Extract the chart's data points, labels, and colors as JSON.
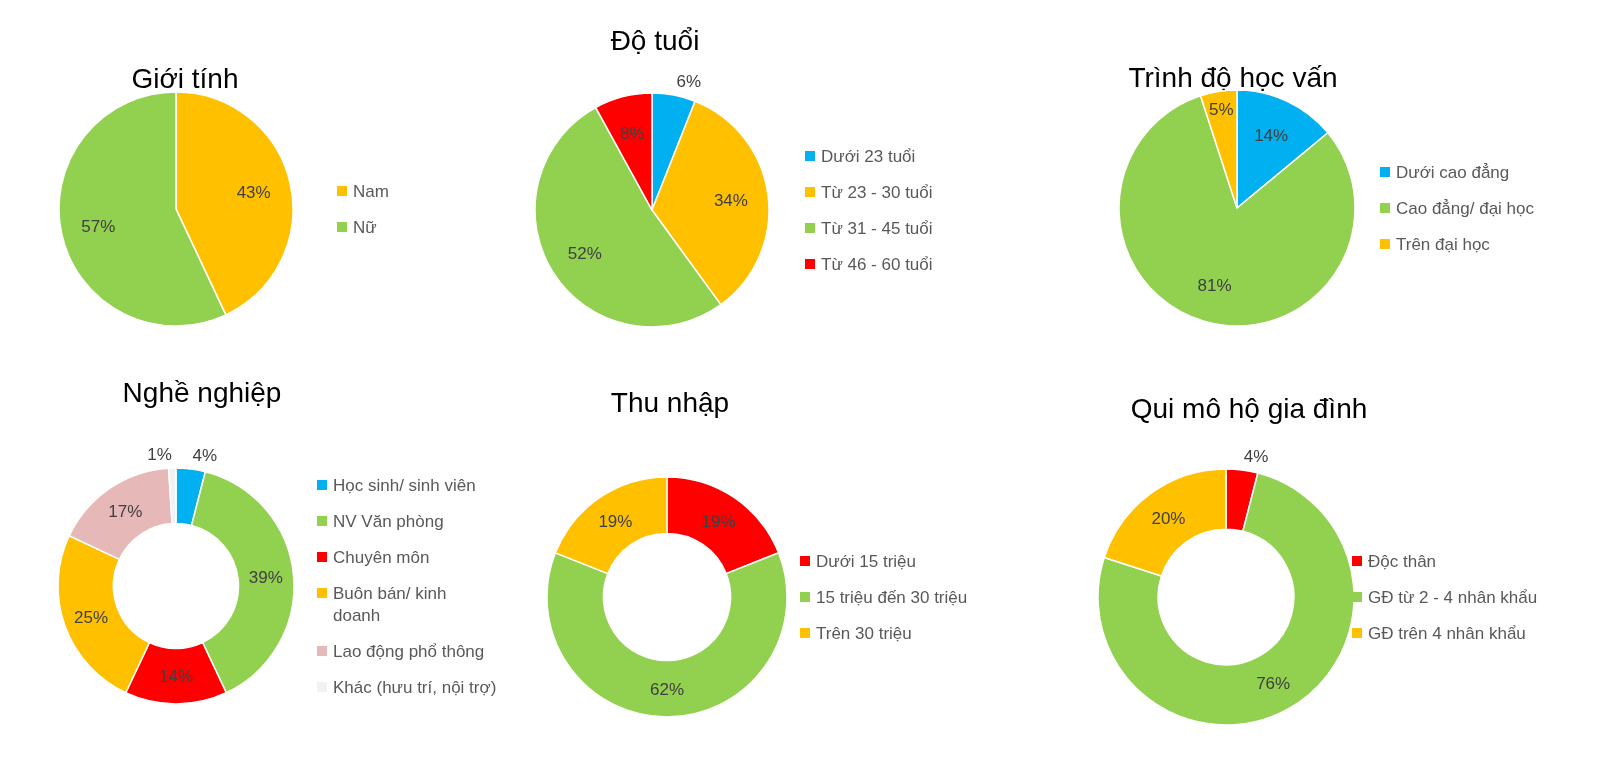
{
  "chart_data": [
    {
      "type": "pie",
      "title": "Giới tính",
      "categories": [
        "Nam",
        "Nữ"
      ],
      "values": [
        43,
        57
      ],
      "value_labels": [
        "43%",
        "57%"
      ],
      "colors": [
        "#ffc000",
        "#92d050"
      ],
      "legend": "right"
    },
    {
      "type": "pie",
      "title": "Độ tuổi",
      "categories": [
        "Dưới 23 tuổi",
        "Từ 23 - 30 tuổi",
        "Từ 31 - 45 tuổi",
        "Từ 46 - 60 tuổi"
      ],
      "values": [
        6,
        34,
        52,
        8
      ],
      "value_labels": [
        "6%",
        "34%",
        "52%",
        "8%"
      ],
      "colors": [
        "#00b0f0",
        "#ffc000",
        "#92d050",
        "#ff0000"
      ],
      "legend": "right"
    },
    {
      "type": "pie",
      "title": "Trình độ học vấn",
      "categories": [
        "Dưới cao đẳng",
        "Cao đẳng/ đại học",
        "Trên đại học"
      ],
      "values": [
        14,
        81,
        5
      ],
      "value_labels": [
        "14%",
        "81%",
        "5%"
      ],
      "colors": [
        "#00b0f0",
        "#92d050",
        "#ffc000"
      ],
      "legend": "right"
    },
    {
      "type": "donut",
      "title": "Nghề nghiệp",
      "categories": [
        "Học sinh/ sinh viên",
        "NV Văn phòng",
        "Chuyên môn",
        "Buôn bán/ kinh doanh",
        "Lao động phổ thông",
        "Khác (hưu trí, nội trợ)"
      ],
      "values": [
        4,
        39,
        14,
        25,
        17,
        1
      ],
      "value_labels": [
        "4%",
        "39%",
        "14%",
        "25%",
        "17%",
        "1%"
      ],
      "colors": [
        "#00b0f0",
        "#92d050",
        "#ff0000",
        "#ffc000",
        "#e6b9b8",
        "#f2f2f2"
      ],
      "legend": "right"
    },
    {
      "type": "donut",
      "title": "Thu nhập",
      "categories": [
        "Dưới 15 triệu",
        "15 triệu đến 30 triệu",
        "Trên 30 triệu"
      ],
      "values": [
        19,
        62,
        19
      ],
      "value_labels": [
        "19%",
        "62%",
        "19%"
      ],
      "colors": [
        "#ff0000",
        "#92d050",
        "#ffc000"
      ],
      "legend": "right"
    },
    {
      "type": "donut",
      "title": "Qui mô hộ gia đình",
      "categories": [
        "Độc thân",
        "GĐ từ 2 - 4 nhân khẩu",
        "GĐ trên 4 nhân khẩu"
      ],
      "values": [
        4,
        76,
        20
      ],
      "value_labels": [
        "4%",
        "76%",
        "20%"
      ],
      "colors": [
        "#ff0000",
        "#92d050",
        "#ffc000"
      ],
      "legend": "right"
    }
  ]
}
